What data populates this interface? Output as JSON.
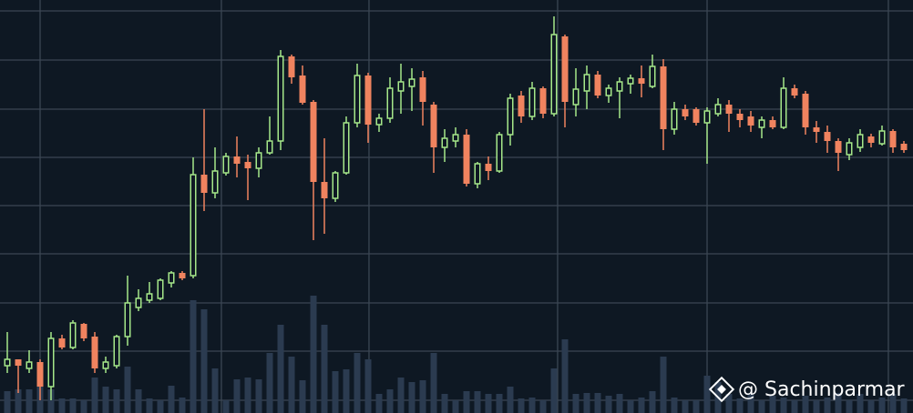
{
  "chart_data": {
    "type": "candlestick",
    "watermark": "@ Sachinparmar",
    "xlim": [
      -0.667,
      82.833
    ],
    "xticks": [
      3,
      19.58,
      33.08,
      50.33,
      64,
      80.58
    ],
    "ylim": [
      0,
      454
    ],
    "yticks": [
      14,
      68,
      121,
      175,
      228,
      281,
      334,
      388,
      442
    ],
    "y2lim": [
      0,
      454
    ],
    "grid": true,
    "up_color": "#a6e88a",
    "down_color": "#f0835f",
    "grid_color": "#3b4653",
    "volume_color": "#2b3b50",
    "open": [
      52,
      59,
      49,
      56,
      29,
      82,
      72,
      98,
      84,
      49,
      52,
      84,
      116,
      124,
      126,
      143,
      154,
      151,
      262,
      242,
      264,
      282,
      276,
      269,
      286,
      299,
      392,
      371,
      342,
      254,
      236,
      264,
      319,
      371,
      317,
      324,
      354,
      359,
      369,
      339,
      292,
      299,
      306,
      252,
      274,
      266,
      306,
      349,
      326,
      357,
      329,
      414,
      339,
      354,
      372,
      349,
      354,
      362,
      368,
      359,
      381,
      312,
      334,
      334,
      319,
      329,
      339,
      329,
      326,
      314,
      322,
      314,
      357,
      351,
      314,
      309,
      299,
      284,
      292,
      304,
      296,
      310,
      296
    ],
    "high": [
      89,
      59,
      69,
      59,
      89,
      86,
      102,
      99,
      89,
      62,
      86,
      151,
      136,
      144,
      148,
      156,
      156,
      281,
      334,
      292,
      286,
      304,
      284,
      292,
      326,
      399,
      394,
      382,
      344,
      302,
      266,
      326,
      384,
      374,
      329,
      369,
      384,
      379,
      376,
      342,
      312,
      314,
      312,
      276,
      282,
      309,
      351,
      354,
      364,
      359,
      436,
      416,
      379,
      382,
      376,
      361,
      369,
      372,
      382,
      394,
      389,
      342,
      339,
      336,
      336,
      346,
      344,
      334,
      332,
      326,
      326,
      369,
      361,
      354,
      321,
      316,
      302,
      302,
      312,
      307,
      316,
      312,
      299
    ],
    "low": [
      44,
      22,
      44,
      14,
      14,
      70,
      70,
      79,
      44,
      44,
      49,
      74,
      112,
      121,
      124,
      138,
      146,
      148,
      222,
      236,
      261,
      259,
      234,
      259,
      284,
      289,
      362,
      339,
      190,
      197,
      232,
      262,
      314,
      297,
      309,
      319,
      329,
      332,
      316,
      264,
      276,
      292,
      249,
      247,
      256,
      264,
      294,
      319,
      322,
      324,
      326,
      314,
      326,
      334,
      346,
      341,
      324,
      351,
      347,
      357,
      289,
      306,
      322,
      316,
      274,
      326,
      309,
      314,
      309,
      302,
      312,
      312,
      346,
      306,
      297,
      286,
      266,
      278,
      287,
      292,
      294,
      286,
      286
    ],
    "close": [
      59,
      52,
      56,
      29,
      82,
      72,
      99,
      82,
      49,
      56,
      84,
      121,
      126,
      131,
      146,
      154,
      148,
      262,
      242,
      266,
      282,
      274,
      269,
      286,
      299,
      392,
      369,
      341,
      254,
      236,
      264,
      319,
      371,
      317,
      324,
      357,
      364,
      367,
      342,
      292,
      302,
      306,
      252,
      274,
      266,
      306,
      346,
      326,
      357,
      329,
      416,
      342,
      356,
      372,
      349,
      357,
      364,
      368,
      362,
      381,
      312,
      334,
      326,
      319,
      332,
      339,
      329,
      322,
      316,
      322,
      314,
      357,
      349,
      314,
      309,
      299,
      286,
      297,
      306,
      297,
      310,
      292,
      289
    ],
    "volume": [
      24,
      26,
      26,
      39,
      26,
      16,
      16,
      14,
      39,
      29,
      26,
      51,
      26,
      16,
      14,
      30,
      17,
      124,
      114,
      49,
      14,
      37,
      39,
      37,
      66,
      97,
      62,
      36,
      129,
      97,
      46,
      48,
      66,
      59,
      21,
      26,
      39,
      34,
      36,
      66,
      21,
      14,
      24,
      24,
      21,
      21,
      29,
      16,
      17,
      14,
      49,
      81,
      21,
      22,
      22,
      19,
      21,
      14,
      17,
      24,
      62,
      17,
      14,
      14,
      41,
      34,
      21,
      16,
      21,
      14,
      19,
      17,
      14,
      19,
      14,
      17,
      22,
      14,
      21,
      14,
      17,
      21,
      16
    ]
  }
}
